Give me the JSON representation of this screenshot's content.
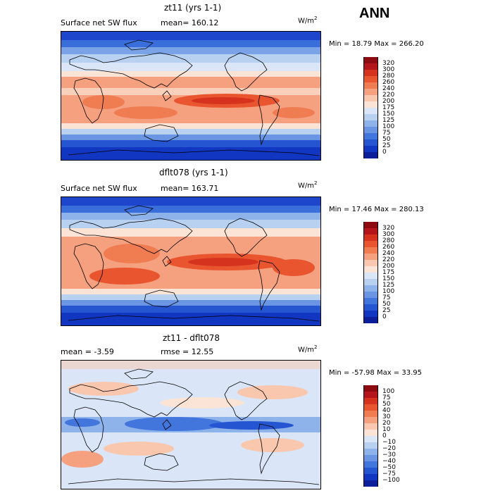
{
  "season_label": "ANN",
  "chart_data": [
    {
      "type": "heatmap",
      "title": "zt11 (yrs 1-1)",
      "variable": "Surface net SW flux",
      "stat_label": "mean=",
      "stat_value": "160.12",
      "units": "W/m",
      "units_exp": "2",
      "min_label": "Min =",
      "min_value": "18.79",
      "max_label": "Max =",
      "max_value": "266.20",
      "levels": [
        "320",
        "300",
        "280",
        "260",
        "240",
        "220",
        "200",
        "175",
        "150",
        "125",
        "100",
        "75",
        "50",
        "25",
        "0"
      ],
      "colors": [
        "#8c0a10",
        "#b3151a",
        "#d6331f",
        "#e8552f",
        "#f07d52",
        "#f5a180",
        "#f9c7ae",
        "#fbe4d6",
        "#dae6f7",
        "#b9d1f1",
        "#8eb3ea",
        "#6a95e3",
        "#4276dc",
        "#2655d1",
        "#1136c2",
        "#0d1e9a"
      ]
    },
    {
      "type": "heatmap",
      "title": "dflt078 (yrs 1-1)",
      "variable": "Surface net SW flux",
      "stat_label": "mean=",
      "stat_value": "163.71",
      "units": "W/m",
      "units_exp": "2",
      "min_label": "Min =",
      "min_value": "17.46",
      "max_label": "Max =",
      "max_value": "280.13",
      "levels": [
        "320",
        "300",
        "280",
        "260",
        "240",
        "220",
        "200",
        "175",
        "150",
        "125",
        "100",
        "75",
        "50",
        "25",
        "0"
      ],
      "colors": [
        "#8c0a10",
        "#b3151a",
        "#d6331f",
        "#e8552f",
        "#f07d52",
        "#f5a180",
        "#f9c7ae",
        "#fbe4d6",
        "#dae6f7",
        "#b9d1f1",
        "#8eb3ea",
        "#6a95e3",
        "#4276dc",
        "#2655d1",
        "#1136c2",
        "#0d1e9a"
      ]
    },
    {
      "type": "heatmap",
      "title": "zt11 - dflt078",
      "stat_label": "mean =",
      "stat_value": "-3.59",
      "stat2_label": "rmse =",
      "stat2_value": "12.55",
      "units": "W/m",
      "units_exp": "2",
      "min_label": "Min =",
      "min_value": "-57.98",
      "max_label": "Max =",
      "max_value": "33.95",
      "levels": [
        "100",
        "75",
        "50",
        "40",
        "30",
        "20",
        "10",
        "0",
        "−10",
        "−20",
        "−30",
        "−40",
        "−50",
        "−75",
        "−100"
      ],
      "colors": [
        "#8c0a10",
        "#b3151a",
        "#d6331f",
        "#e8552f",
        "#f07d52",
        "#f5a180",
        "#f9c7ae",
        "#fbe4d6",
        "#dae6f7",
        "#b9d1f1",
        "#8eb3ea",
        "#6a95e3",
        "#4276dc",
        "#2655d1",
        "#1136c2",
        "#0d1e9a"
      ]
    }
  ]
}
